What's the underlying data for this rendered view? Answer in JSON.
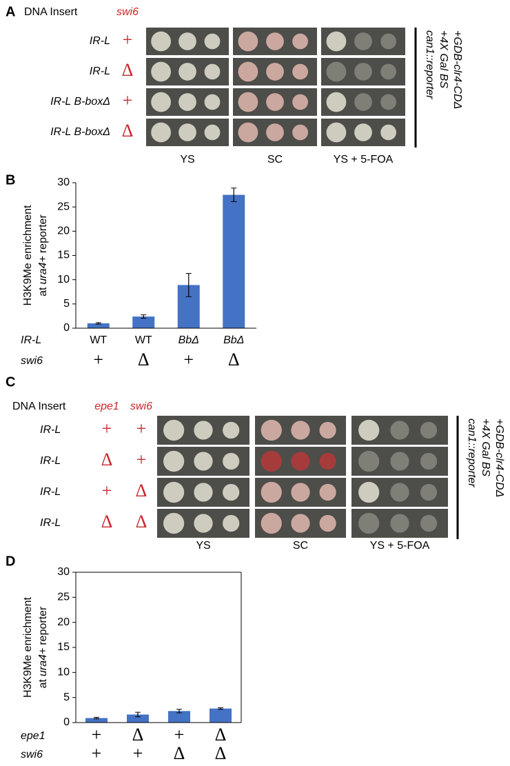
{
  "panel_a": {
    "label": "A",
    "header": "DNA Insert",
    "column_headers": [
      "swi6"
    ],
    "rows": [
      [
        "IR-L",
        "+"
      ],
      [
        "IR-L",
        "Δ"
      ],
      [
        "IR-L B-boxΔ",
        "+"
      ],
      [
        "IR-L B-boxΔ",
        "Δ"
      ]
    ],
    "plates": [
      "YS",
      "SC",
      "YS + 5-FOA"
    ],
    "strain": [
      "can1::reporter",
      "+4X Gal BS",
      "+GDB-clr4-CDΔ"
    ]
  },
  "panel_c": {
    "label": "C",
    "header": "DNA Insert",
    "column_headers": [
      "epe1",
      "swi6"
    ],
    "rows": [
      [
        "IR-L",
        "+",
        "+"
      ],
      [
        "IR-L",
        "Δ",
        "+"
      ],
      [
        "IR-L",
        "+",
        "Δ"
      ],
      [
        "IR-L",
        "Δ",
        "Δ"
      ]
    ],
    "plates": [
      "YS",
      "SC",
      "YS + 5-FOA"
    ],
    "strain": [
      "can1::reporter",
      "+4X Gal BS",
      "+GDB-clr4-CDΔ"
    ]
  },
  "chart_data": [
    {
      "type": "bar",
      "panel_label": "B",
      "y_label": {
        "line1": "H3K9Me enrichment",
        "pre": "at",
        "italic": "ura4+",
        "post": "reporter"
      },
      "category_rows": [
        {
          "name": "IR-L",
          "labels": [
            "WT",
            "WT",
            "BbΔ",
            "BbΔ"
          ]
        },
        {
          "name": "swi6",
          "labels": [
            "+",
            "Δ",
            "+",
            "Δ"
          ]
        }
      ],
      "values": [
        1.0,
        2.4,
        8.9,
        27.5
      ],
      "errors": [
        0.15,
        0.35,
        2.4,
        1.4
      ],
      "color": "#4472c4",
      "ylim": [
        0,
        30
      ],
      "yticks": [
        0,
        5,
        10,
        15,
        20,
        25,
        30
      ],
      "box": false
    },
    {
      "type": "bar",
      "panel_label": "D",
      "y_label": {
        "line1": "H3K9Me enrichment",
        "pre": "at",
        "italic": "ura4+",
        "post": "reporter"
      },
      "category_rows": [
        {
          "name": "epe1",
          "labels": [
            "+",
            "Δ",
            "+",
            "Δ"
          ]
        },
        {
          "name": "swi6",
          "labels": [
            "+",
            "+",
            "Δ",
            "Δ"
          ]
        }
      ],
      "values": [
        0.9,
        1.6,
        2.3,
        2.8
      ],
      "errors": [
        0.15,
        0.45,
        0.35,
        0.15
      ],
      "color": "#4472c4",
      "ylim": [
        0,
        30
      ],
      "yticks": [
        0,
        5,
        10,
        15,
        20,
        25,
        30
      ],
      "box": true
    }
  ]
}
